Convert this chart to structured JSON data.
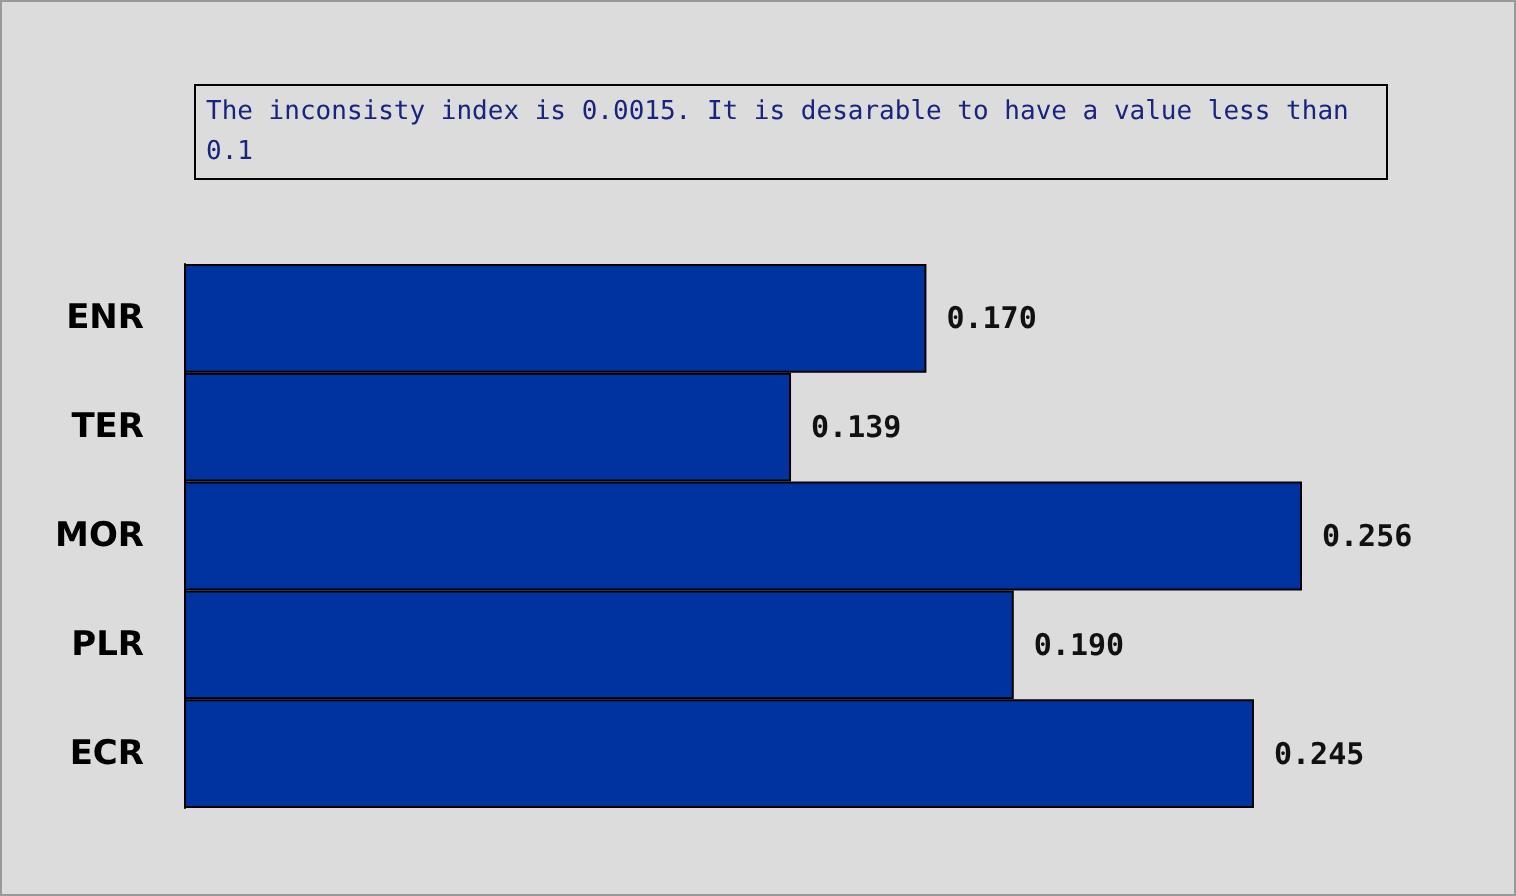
{
  "chart_data": {
    "type": "bar",
    "orientation": "horizontal",
    "categories": [
      "ENR",
      "TER",
      "MOR",
      "PLR",
      "ECR"
    ],
    "values": [
      0.17,
      0.139,
      0.256,
      0.19,
      0.245
    ],
    "value_labels": [
      "0.170",
      "0.139",
      "0.256",
      "0.190",
      "0.245"
    ],
    "color": "#0033a0",
    "annotations": [
      "The inconsisty index is 0.0015. It is desarable to have a value less than 0.1"
    ]
  }
}
